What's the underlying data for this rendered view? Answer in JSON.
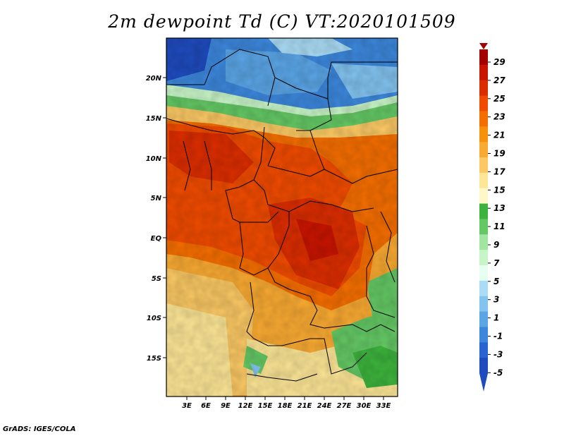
{
  "title": "2m dewpoint Td (C) VT:2020101509",
  "credit": "GrADS: IGES/COLA",
  "map": {
    "lat_labels": [
      "20N",
      "15N",
      "10N",
      "5N",
      "EQ",
      "5S",
      "10S",
      "15S"
    ],
    "lon_labels": [
      "3E",
      "6E",
      "9E",
      "12E",
      "15E",
      "18E",
      "21E",
      "24E",
      "27E",
      "30E",
      "33E"
    ]
  },
  "colorbar": {
    "labels": [
      "29",
      "27",
      "25",
      "23",
      "21",
      "19",
      "17",
      "15",
      "13",
      "11",
      "9",
      "7",
      "5",
      "3",
      "1",
      "-1",
      "-3",
      "-5"
    ],
    "colors": [
      "#a50000",
      "#c81400",
      "#dc2d00",
      "#f04b00",
      "#f56e00",
      "#f7910a",
      "#f9aa32",
      "#fbc864",
      "#fde696",
      "#fff7c8",
      "#3cb43c",
      "#64c864",
      "#a0e6a0",
      "#c8f5c8",
      "#e6fff0",
      "#aadcf5",
      "#82c3f0",
      "#5aa5e6",
      "#3c87dc",
      "#2864d2",
      "#1e4bbe"
    ]
  }
}
